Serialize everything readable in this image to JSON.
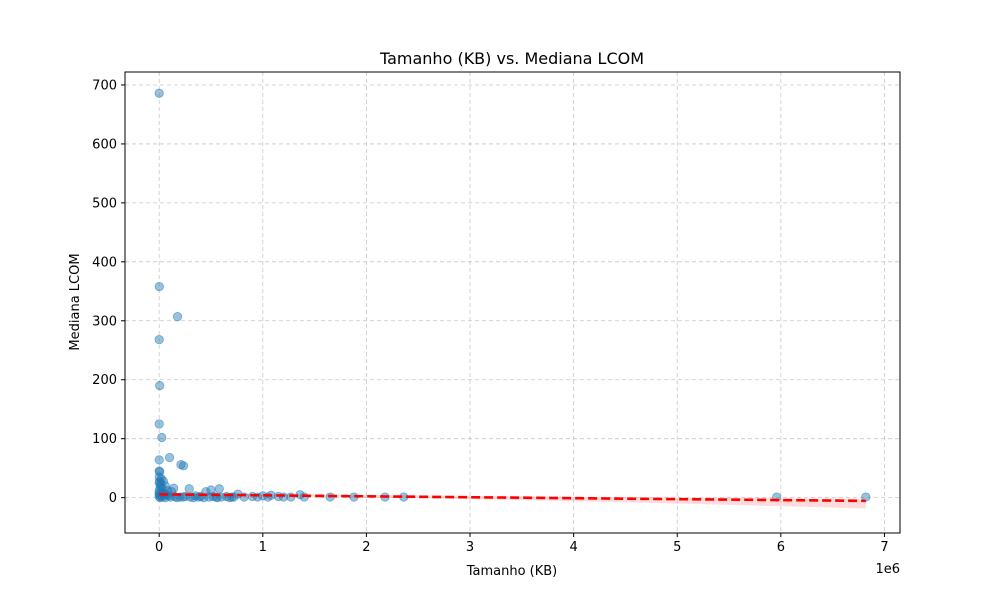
{
  "chart_data": {
    "type": "scatter",
    "title": "Tamanho (KB) vs. Mediana LCOM",
    "xlabel": "Tamanho (KB)",
    "ylabel": "Mediana LCOM",
    "x_offset_label": "1e6",
    "xlim": [
      -330000,
      7150000
    ],
    "ylim": [
      -60,
      722
    ],
    "x_ticks": [
      0,
      1000000,
      2000000,
      3000000,
      4000000,
      5000000,
      6000000,
      7000000
    ],
    "x_tick_labels": [
      "0",
      "1",
      "2",
      "3",
      "4",
      "5",
      "6",
      "7"
    ],
    "y_ticks": [
      0,
      100,
      200,
      300,
      400,
      500,
      600,
      700
    ],
    "y_tick_labels": [
      "0",
      "100",
      "200",
      "300",
      "400",
      "500",
      "600",
      "700"
    ],
    "grid": true,
    "point_color": "#1f77b4",
    "regression_color": "#ff0000",
    "confidence_color": "#ff9999",
    "points": [
      [
        0,
        686
      ],
      [
        1000,
        358
      ],
      [
        0,
        268
      ],
      [
        5000,
        190
      ],
      [
        177000,
        307
      ],
      [
        0,
        125
      ],
      [
        25000,
        102
      ],
      [
        100000,
        68
      ],
      [
        0,
        64
      ],
      [
        210000,
        56
      ],
      [
        235000,
        54
      ],
      [
        0,
        45
      ],
      [
        5000,
        44
      ],
      [
        0,
        35
      ],
      [
        20000,
        32
      ],
      [
        40000,
        28
      ],
      [
        0,
        25
      ],
      [
        15000,
        22
      ],
      [
        60000,
        20
      ],
      [
        10000,
        18
      ],
      [
        140000,
        16
      ],
      [
        290000,
        15
      ],
      [
        580000,
        15
      ],
      [
        500000,
        13
      ],
      [
        450000,
        10
      ],
      [
        30000,
        15
      ],
      [
        80000,
        12
      ],
      [
        120000,
        10
      ],
      [
        0,
        8
      ],
      [
        50000,
        6
      ],
      [
        0,
        5
      ],
      [
        20000,
        4
      ],
      [
        90000,
        3
      ],
      [
        150000,
        2
      ],
      [
        200000,
        1
      ],
      [
        250000,
        2
      ],
      [
        300000,
        1
      ],
      [
        350000,
        3
      ],
      [
        400000,
        2
      ],
      [
        480000,
        1
      ],
      [
        520000,
        2
      ],
      [
        560000,
        0
      ],
      [
        600000,
        1
      ],
      [
        650000,
        2
      ],
      [
        700000,
        1
      ],
      [
        760000,
        6
      ],
      [
        820000,
        1
      ],
      [
        900000,
        2
      ],
      [
        950000,
        1
      ],
      [
        1000000,
        3
      ],
      [
        1050000,
        1
      ],
      [
        1080000,
        4
      ],
      [
        1150000,
        2
      ],
      [
        1200000,
        1
      ],
      [
        1270000,
        1
      ],
      [
        1360000,
        5
      ],
      [
        1400000,
        1
      ],
      [
        1650000,
        1
      ],
      [
        1880000,
        1
      ],
      [
        2180000,
        1
      ],
      [
        2360000,
        1
      ],
      [
        5960000,
        1
      ],
      [
        6820000,
        1
      ],
      [
        10000,
        0
      ],
      [
        30000,
        1
      ],
      [
        60000,
        0
      ],
      [
        110000,
        1
      ],
      [
        170000,
        0
      ],
      [
        230000,
        1
      ],
      [
        330000,
        0
      ],
      [
        380000,
        1
      ],
      [
        430000,
        0
      ],
      [
        550000,
        1
      ],
      [
        680000,
        0
      ],
      [
        720000,
        1
      ],
      [
        0,
        2
      ],
      [
        0,
        12
      ],
      [
        5000,
        28
      ],
      [
        35000,
        8
      ],
      [
        70000,
        5
      ]
    ],
    "regression": {
      "x": [
        0,
        6820000
      ],
      "y": [
        5.5,
        -5.5
      ]
    },
    "confidence_band": {
      "x": [
        0,
        500000,
        1000000,
        2000000,
        3000000,
        4000000,
        5000000,
        6000000,
        6820000
      ],
      "lower": [
        4.0,
        3.5,
        2.8,
        0.5,
        -2.5,
        -6.0,
        -10.0,
        -14.5,
        -18.5
      ],
      "upper": [
        7.0,
        6.5,
        6.0,
        4.5,
        3.0,
        1.5,
        0.0,
        -1.0,
        -2.0
      ]
    }
  }
}
